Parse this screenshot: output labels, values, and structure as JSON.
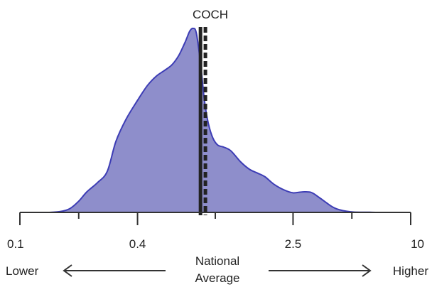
{
  "chart_data": {
    "type": "area",
    "title": "COCH",
    "x_scale": "log",
    "xlim": [
      0.1,
      10
    ],
    "x_ticks": [
      0.1,
      0.4,
      2.5,
      10
    ],
    "x_tick_labels": [
      "0.1",
      "0.4",
      "2.5",
      "10"
    ],
    "fill_color": "#8e8ecb",
    "line_color": "#3d3db5",
    "density": {
      "x": [
        0.14,
        0.16,
        0.18,
        0.2,
        0.22,
        0.25,
        0.28,
        0.31,
        0.35,
        0.4,
        0.45,
        0.5,
        0.55,
        0.6,
        0.65,
        0.7,
        0.74,
        0.77,
        0.8,
        0.84,
        0.88,
        0.92,
        0.97,
        1.03,
        1.1,
        1.2,
        1.35,
        1.5,
        1.65,
        1.8,
        2.0,
        2.25,
        2.5,
        2.8,
        3.1,
        3.4,
        3.7,
        4.0,
        4.3,
        4.7,
        5.1,
        5.5,
        6.0,
        6.6
      ],
      "y": [
        0,
        0.004,
        0.02,
        0.06,
        0.11,
        0.16,
        0.22,
        0.38,
        0.5,
        0.6,
        0.68,
        0.73,
        0.76,
        0.79,
        0.84,
        0.91,
        0.97,
        0.985,
        0.96,
        0.8,
        0.6,
        0.48,
        0.4,
        0.36,
        0.35,
        0.33,
        0.27,
        0.23,
        0.21,
        0.19,
        0.15,
        0.12,
        0.105,
        0.11,
        0.107,
        0.08,
        0.052,
        0.028,
        0.015,
        0.006,
        0.002,
        0.001,
        0.001,
        0
      ]
    },
    "lines": [
      {
        "name": "",
        "x": 0.84,
        "style": "solid"
      },
      {
        "name": "",
        "x": 0.89,
        "style": "dashed"
      }
    ],
    "annotations": {
      "lower": "Lower",
      "higher": "Higher",
      "center_line1": "National",
      "center_line2": "Average"
    }
  }
}
